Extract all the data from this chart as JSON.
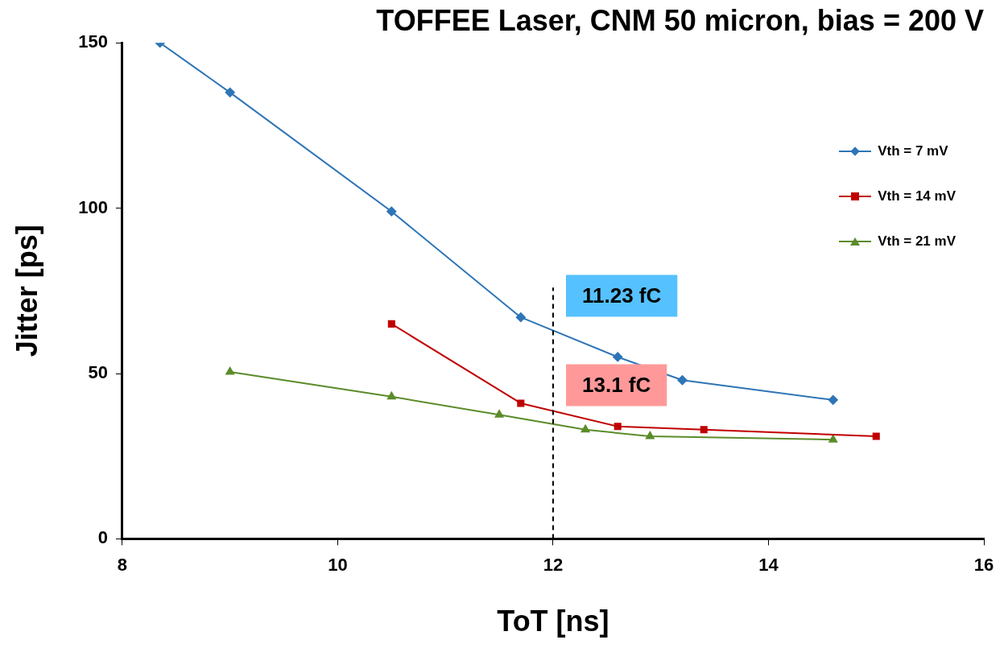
{
  "chart_data": {
    "type": "line",
    "title": "TOFFEE Laser, CNM 50 micron, bias = 200 V",
    "xlabel": "ToT [ns]",
    "ylabel": "Jitter [ps]",
    "xlim": [
      8,
      16
    ],
    "xticks": [
      8,
      10,
      12,
      14,
      16
    ],
    "ylim": [
      0,
      150
    ],
    "yticks": [
      0,
      50,
      100,
      150
    ],
    "grid": false,
    "legend": "top right",
    "series": [
      {
        "name": "Vth = 7 mV",
        "color": "#2e75b6",
        "marker": "diamond",
        "x": [
          8.35,
          9.0,
          10.5,
          11.7,
          12.6,
          13.2,
          14.6
        ],
        "values": [
          150,
          135,
          99,
          67,
          55,
          48,
          42
        ]
      },
      {
        "name": "Vth = 14 mV",
        "color": "#c00000",
        "marker": "square",
        "x": [
          10.5,
          11.7,
          12.6,
          13.4,
          15.0
        ],
        "values": [
          65,
          41,
          34,
          33,
          31
        ]
      },
      {
        "name": "Vth = 21 mV",
        "color": "#5b8c2a",
        "marker": "triangle",
        "x": [
          9.0,
          10.5,
          11.5,
          12.3,
          12.9,
          14.6
        ],
        "values": [
          50.5,
          43,
          37.5,
          33,
          31,
          30
        ]
      }
    ],
    "ref_lines": [
      {
        "axis": "x",
        "value": 12,
        "color": "#000000",
        "line_style": "dashed"
      }
    ],
    "annotations": [
      "11.23 fC",
      "13.1 fC"
    ]
  }
}
